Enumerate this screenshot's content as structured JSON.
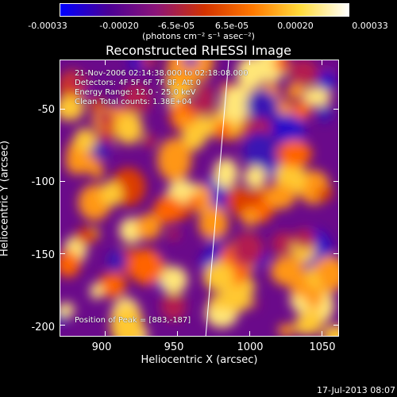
{
  "colorbar": {
    "ticks": [
      "-0.00033",
      "-0.00020",
      "-6.5e-05",
      "6.5e-05",
      "0.00020",
      "0.00033"
    ],
    "unit": "(photons cm⁻² s⁻¹ asec⁻²)",
    "colors": [
      "#0000ff",
      "#4b0096",
      "#8c1478",
      "#d23200",
      "#ff7800",
      "#ffdc3c",
      "#ffffff"
    ]
  },
  "title": "Reconstructed RHESSI Image",
  "info": {
    "line1": "21-Nov-2006 02:14:38.000 to 02:18:08.000",
    "line2": "Detectors: 4F 5F 6F 7F 8F, Att 0",
    "line3": "Energy Range: 12.0 - 25.0 keV",
    "line4": "Clean    Total counts: 1.38E+04",
    "peak": "Position of Peak = [883,-187]"
  },
  "axes": {
    "xlabel": "Heliocentric X (arcsec)",
    "ylabel": "Heliocentric Y (arcsec)",
    "xticks": [
      "900",
      "950",
      "1000",
      "1050"
    ],
    "yticks": [
      "-50",
      "-100",
      "-150",
      "-200"
    ],
    "xticks_values": [
      900,
      950,
      1000,
      1050
    ],
    "yticks_values": [
      -50,
      -100,
      -150,
      -200
    ],
    "xlim": [
      869,
      1062
    ],
    "ylim": [
      -208,
      -16
    ]
  },
  "timestamp": "17-Jul-2013 08:07"
}
